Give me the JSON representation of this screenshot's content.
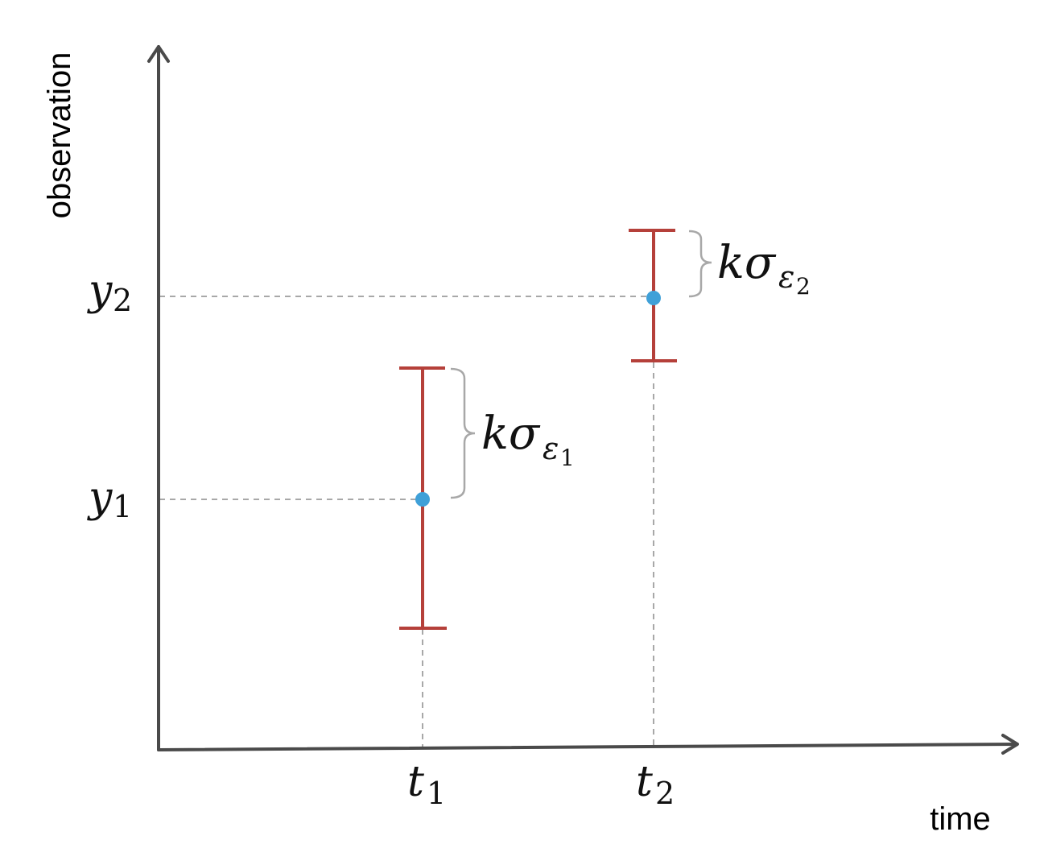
{
  "axes": {
    "x_title": "time",
    "y_title": "observation"
  },
  "points": [
    {
      "t_symbol": "t",
      "t_subscript": "1",
      "y_symbol": "y",
      "y_subscript": "1",
      "label_main": "kσ",
      "label_sub": "ε",
      "label_subsub": "1"
    },
    {
      "t_symbol": "t",
      "t_subscript": "2",
      "y_symbol": "y",
      "y_subscript": "2",
      "label_main": "kσ",
      "label_sub": "ε",
      "label_subsub": "2"
    }
  ],
  "colors": {
    "axis": "#4a4a4a",
    "error_bar": "#b5403a",
    "point": "#3fa0d8",
    "guide": "#a8a8a8",
    "brace": "#a8a8a8"
  }
}
